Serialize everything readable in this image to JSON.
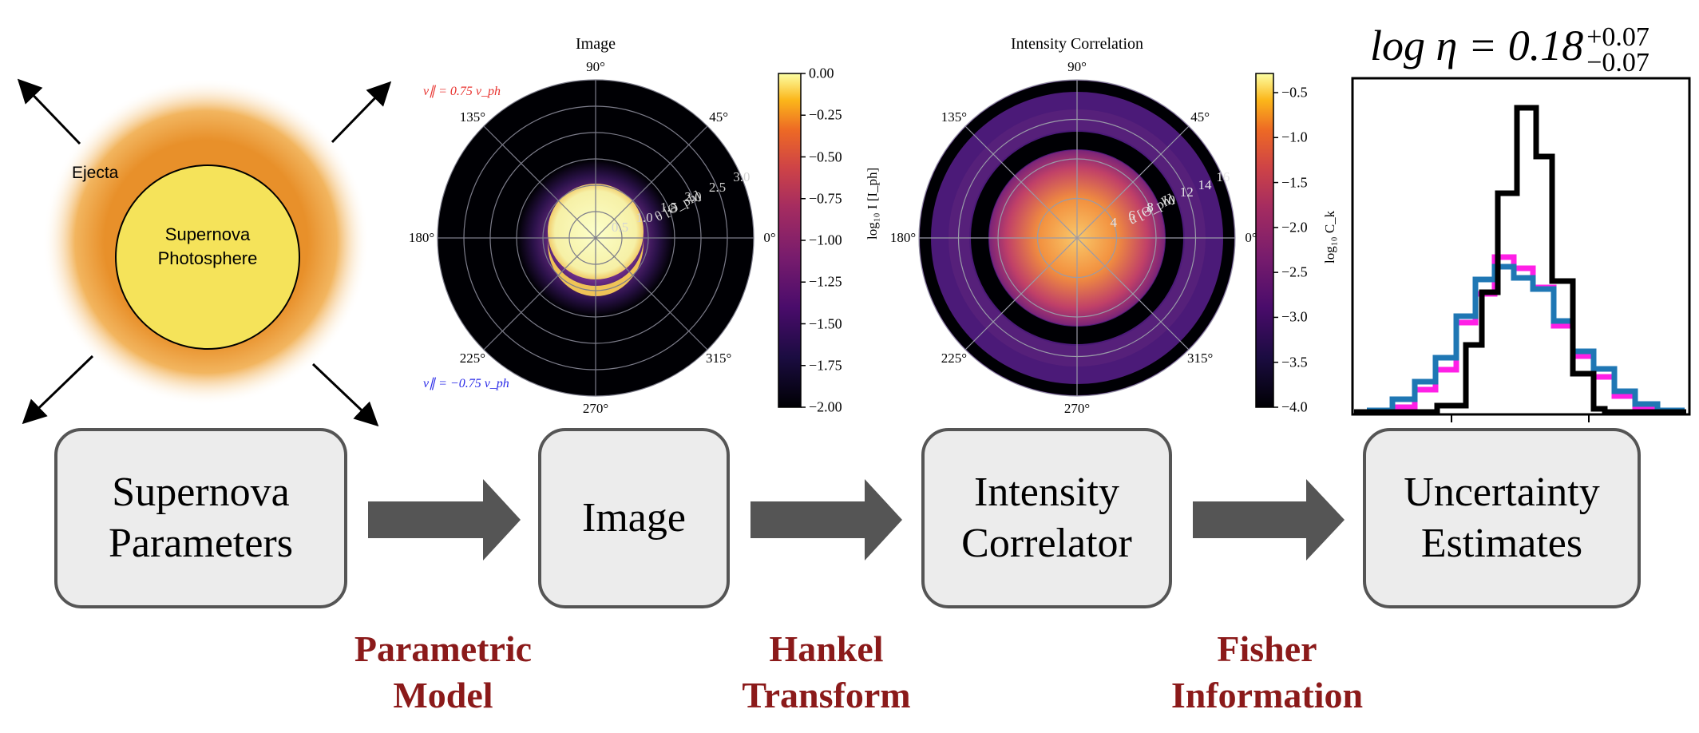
{
  "sketch": {
    "ejecta_label": "Ejecta",
    "photosphere_line1": "Supernova",
    "photosphere_line2": "Photosphere"
  },
  "boxes": [
    {
      "line1": "Supernova",
      "line2": "Parameters"
    },
    {
      "line1": "Image",
      "line2": ""
    },
    {
      "line1": "Intensity",
      "line2": "Correlator"
    },
    {
      "line1": "Uncertainty",
      "line2": "Estimates"
    }
  ],
  "stages": [
    {
      "line1": "Parametric",
      "line2": "Model"
    },
    {
      "line1": "Hankel",
      "line2": "Transform"
    },
    {
      "line1": "Fisher",
      "line2": "Information"
    }
  ],
  "image_plot": {
    "title": "Image",
    "angles": [
      "90°",
      "45°",
      "0°",
      "315°",
      "270°",
      "225°",
      "180°",
      "135°"
    ],
    "radial_ticks": [
      "0.5",
      "1.0",
      "1.5",
      "2.0",
      "2.5",
      "3.0"
    ],
    "radial_label": "θ [Θ_ph]",
    "vpar_pos": "v∥ = 0.75 v_ph",
    "vpar_neg": "v∥ = −0.75 v_ph",
    "cbar_ticks": [
      "0.00",
      "−0.25",
      "−0.50",
      "−0.75",
      "−1.00",
      "−1.25",
      "−1.50",
      "−1.75",
      "−2.00"
    ],
    "cbar_label": "log₁₀ I [I_ph]"
  },
  "corr_plot": {
    "title": "Intensity Correlation",
    "angles": [
      "90°",
      "45°",
      "0°",
      "315°",
      "270°",
      "225°",
      "180°",
      "135°"
    ],
    "radial_ticks": [
      "4",
      "6",
      "8",
      "10",
      "12",
      "14",
      "16"
    ],
    "radial_label": "u [Θ_ph]",
    "cbar_ticks": [
      "−0.5",
      "−1.0",
      "−1.5",
      "−2.0",
      "−2.5",
      "−3.0",
      "−3.5",
      "−4.0"
    ],
    "cbar_label": "log₁₀ C_k"
  },
  "histogram": {
    "title": "log η = 0.18",
    "sup": "+0.07",
    "sub": "−0.07",
    "colors": {
      "black": "#000000",
      "magenta": "#ff1fe6",
      "blue": "#1f77b4"
    }
  },
  "colors": {
    "stage_text": "#8b1a1a",
    "arrow": "#555555",
    "box_fill": "#ececec",
    "box_border": "#555555",
    "photosphere": "#f5e35a",
    "vpar_pos": "#e8332f",
    "vpar_neg": "#2a2ae8"
  }
}
